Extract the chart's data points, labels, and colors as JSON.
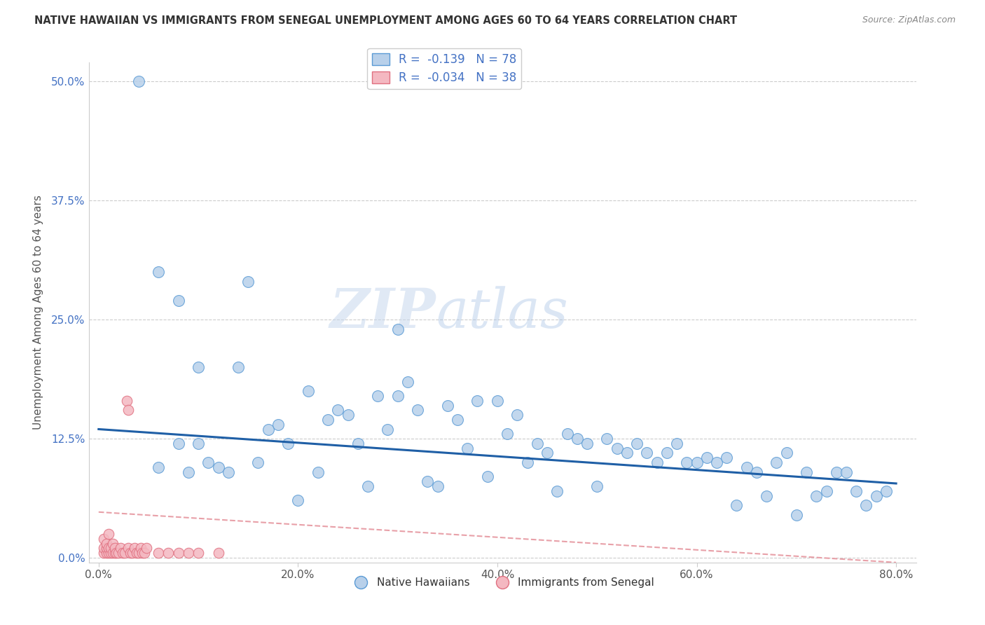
{
  "title": "NATIVE HAWAIIAN VS IMMIGRANTS FROM SENEGAL UNEMPLOYMENT AMONG AGES 60 TO 64 YEARS CORRELATION CHART",
  "source": "Source: ZipAtlas.com",
  "ylabel": "Unemployment Among Ages 60 to 64 years",
  "xlim": [
    -0.01,
    0.82
  ],
  "ylim": [
    -0.005,
    0.52
  ],
  "xticks": [
    0.0,
    0.2,
    0.4,
    0.6,
    0.8
  ],
  "xticklabels": [
    "0.0%",
    "20.0%",
    "40.0%",
    "60.0%",
    "80.0%"
  ],
  "yticks": [
    0.0,
    0.125,
    0.25,
    0.375,
    0.5
  ],
  "yticklabels": [
    "0.0%",
    "12.5%",
    "25.0%",
    "37.5%",
    "50.0%"
  ],
  "blue_color": "#b8d0ea",
  "blue_edge_color": "#5b9bd5",
  "pink_color": "#f4b8c1",
  "pink_edge_color": "#e07080",
  "trend_blue_color": "#1f5fa6",
  "trend_pink_color": "#e8a0a8",
  "legend_blue_R": "-0.139",
  "legend_blue_N": "78",
  "legend_pink_R": "-0.034",
  "legend_pink_N": "38",
  "legend_label_blue": "Native Hawaiians",
  "legend_label_pink": "Immigrants from Senegal",
  "watermark_zip": "ZIP",
  "watermark_atlas": "atlas",
  "blue_scatter_x": [
    0.04,
    0.06,
    0.08,
    0.09,
    0.1,
    0.11,
    0.12,
    0.13,
    0.14,
    0.15,
    0.16,
    0.17,
    0.18,
    0.19,
    0.2,
    0.21,
    0.22,
    0.23,
    0.24,
    0.25,
    0.26,
    0.27,
    0.28,
    0.29,
    0.3,
    0.31,
    0.32,
    0.33,
    0.34,
    0.35,
    0.36,
    0.37,
    0.38,
    0.39,
    0.4,
    0.41,
    0.42,
    0.43,
    0.44,
    0.45,
    0.46,
    0.47,
    0.48,
    0.49,
    0.5,
    0.51,
    0.52,
    0.53,
    0.54,
    0.55,
    0.56,
    0.57,
    0.58,
    0.59,
    0.6,
    0.61,
    0.62,
    0.63,
    0.64,
    0.65,
    0.66,
    0.67,
    0.68,
    0.69,
    0.7,
    0.71,
    0.72,
    0.73,
    0.74,
    0.75,
    0.76,
    0.77,
    0.78,
    0.79,
    0.08,
    0.1,
    0.06,
    0.3
  ],
  "blue_scatter_y": [
    0.5,
    0.3,
    0.27,
    0.09,
    0.2,
    0.1,
    0.095,
    0.09,
    0.2,
    0.29,
    0.1,
    0.135,
    0.14,
    0.12,
    0.06,
    0.175,
    0.09,
    0.145,
    0.155,
    0.15,
    0.12,
    0.075,
    0.17,
    0.135,
    0.17,
    0.185,
    0.155,
    0.08,
    0.075,
    0.16,
    0.145,
    0.115,
    0.165,
    0.085,
    0.165,
    0.13,
    0.15,
    0.1,
    0.12,
    0.11,
    0.07,
    0.13,
    0.125,
    0.12,
    0.075,
    0.125,
    0.115,
    0.11,
    0.12,
    0.11,
    0.1,
    0.11,
    0.12,
    0.1,
    0.1,
    0.105,
    0.1,
    0.105,
    0.055,
    0.095,
    0.09,
    0.065,
    0.1,
    0.11,
    0.045,
    0.09,
    0.065,
    0.07,
    0.09,
    0.09,
    0.07,
    0.055,
    0.065,
    0.07,
    0.12,
    0.12,
    0.095,
    0.24
  ],
  "pink_scatter_x": [
    0.005,
    0.005,
    0.005,
    0.008,
    0.008,
    0.008,
    0.01,
    0.01,
    0.01,
    0.012,
    0.012,
    0.014,
    0.014,
    0.016,
    0.016,
    0.018,
    0.02,
    0.022,
    0.024,
    0.026,
    0.028,
    0.03,
    0.03,
    0.032,
    0.034,
    0.036,
    0.038,
    0.04,
    0.042,
    0.044,
    0.046,
    0.048,
    0.06,
    0.07,
    0.08,
    0.09,
    0.1,
    0.12
  ],
  "pink_scatter_y": [
    0.005,
    0.01,
    0.02,
    0.005,
    0.01,
    0.015,
    0.005,
    0.01,
    0.025,
    0.005,
    0.01,
    0.005,
    0.015,
    0.005,
    0.01,
    0.005,
    0.005,
    0.01,
    0.005,
    0.005,
    0.165,
    0.155,
    0.01,
    0.005,
    0.005,
    0.01,
    0.005,
    0.005,
    0.01,
    0.005,
    0.005,
    0.01,
    0.005,
    0.005,
    0.005,
    0.005,
    0.005,
    0.005
  ],
  "trend_blue_x0": 0.0,
  "trend_blue_y0": 0.135,
  "trend_blue_x1": 0.8,
  "trend_blue_y1": 0.078,
  "trend_pink_x0": 0.0,
  "trend_pink_y0": 0.048,
  "trend_pink_x1": 0.8,
  "trend_pink_y1": -0.005
}
